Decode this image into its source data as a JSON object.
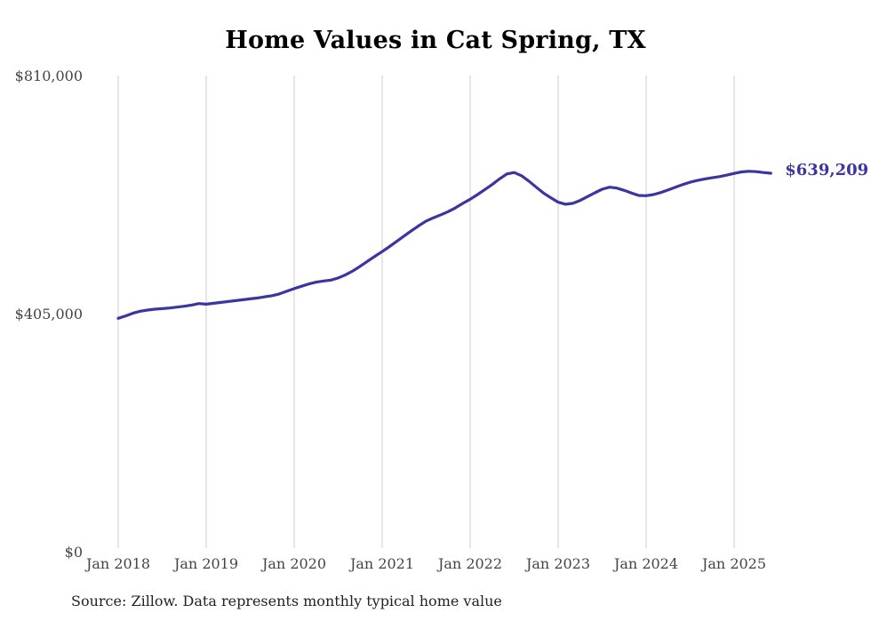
{
  "chart": {
    "title": "Home Values in Cat Spring, TX",
    "source": "Source: Zillow. Data represents monthly typical home value",
    "end_label": "$639,209",
    "colors": {
      "line": "#3b35a0",
      "grid": "#cccccc",
      "axis_text": "#444444",
      "title_text": "#000000",
      "source_text": "#222222"
    }
  },
  "chart_data": {
    "type": "line",
    "title": "Home Values in Cat Spring, TX",
    "xlabel": "",
    "ylabel": "",
    "ylim": [
      0,
      810000
    ],
    "grid": "vertical-only",
    "legend_position": "none",
    "x_tick_labels": [
      "Jan 2018",
      "Jan 2019",
      "Jan 2020",
      "Jan 2021",
      "Jan 2022",
      "Jan 2023",
      "Jan 2024",
      "Jan 2025"
    ],
    "y_ticks": [
      {
        "label": "$810,000",
        "value": 810000
      },
      {
        "label": "$405,000",
        "value": 405000
      },
      {
        "label": "$0",
        "value": 0
      }
    ],
    "last_value": 639209,
    "last_value_label": "$639,209",
    "series": [
      {
        "name": "Monthly typical home value",
        "start_month": "2018-01",
        "end_month": "2025-06",
        "values": [
          392500,
          396500,
          401000,
          404500,
          406500,
          408000,
          409000,
          410000,
          411500,
          413000,
          415000,
          417500,
          416500,
          418000,
          419500,
          421000,
          422500,
          424000,
          425500,
          427000,
          429000,
          431000,
          434000,
          438500,
          443000,
          447000,
          451000,
          454000,
          456000,
          457500,
          461000,
          466500,
          473000,
          481000,
          489500,
          498000,
          506000,
          514500,
          523500,
          532500,
          541500,
          550000,
          558000,
          563500,
          568500,
          574000,
          580500,
          588000,
          595000,
          603000,
          611500,
          620000,
          629500,
          638000,
          640500,
          635000,
          626000,
          615500,
          605500,
          597500,
          590000,
          586500,
          588000,
          593000,
          599500,
          606000,
          612000,
          615500,
          614000,
          610000,
          605500,
          601500,
          601000,
          603000,
          606500,
          611000,
          615500,
          620000,
          624000,
          627000,
          629500,
          631500,
          633500,
          636000,
          639000,
          641500,
          642500,
          642000,
          640500,
          639209
        ]
      }
    ]
  }
}
